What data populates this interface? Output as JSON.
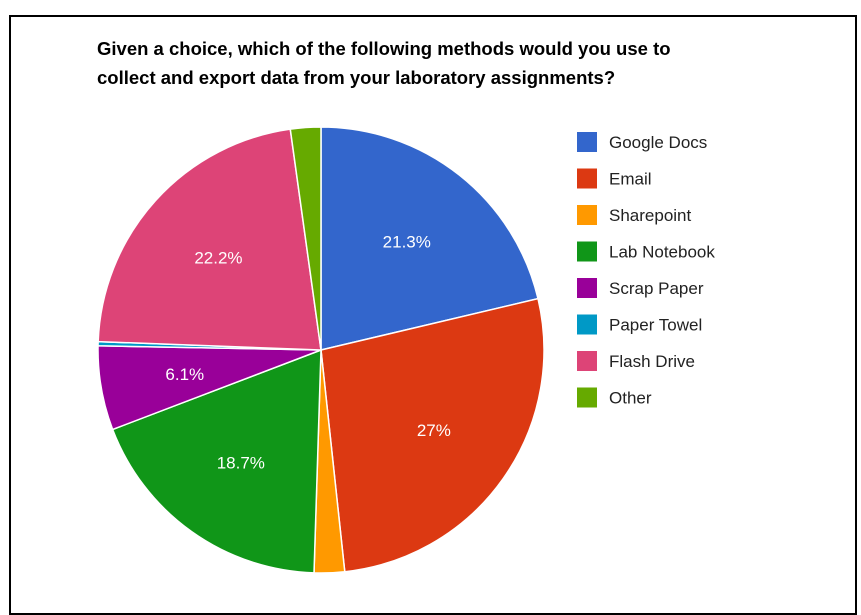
{
  "chart_data": {
    "type": "pie",
    "title_lines": [
      "Given a choice, which of the following methods would you use to",
      "collect and export data from your laboratory assignments?"
    ],
    "start_angle_deg": 0,
    "direction": "clockwise",
    "legend_position": "right",
    "slices": [
      {
        "name": "Google Docs",
        "value": 21.3,
        "label": "21.3%",
        "color": "#3366cc"
      },
      {
        "name": "Email",
        "value": 27.0,
        "label": "27%",
        "color": "#dc3912"
      },
      {
        "name": "Sharepoint",
        "value": 2.2,
        "label": "",
        "color": "#ff9900"
      },
      {
        "name": "Lab Notebook",
        "value": 18.7,
        "label": "18.7%",
        "color": "#109618"
      },
      {
        "name": "Scrap Paper",
        "value": 6.1,
        "label": "6.1%",
        "color": "#990099"
      },
      {
        "name": "Paper Towel",
        "value": 0.3,
        "label": "",
        "color": "#0099c6"
      },
      {
        "name": "Flash Drive",
        "value": 22.2,
        "label": "22.2%",
        "color": "#dd4477"
      },
      {
        "name": "Other",
        "value": 2.2,
        "label": "",
        "color": "#66aa00"
      }
    ]
  }
}
